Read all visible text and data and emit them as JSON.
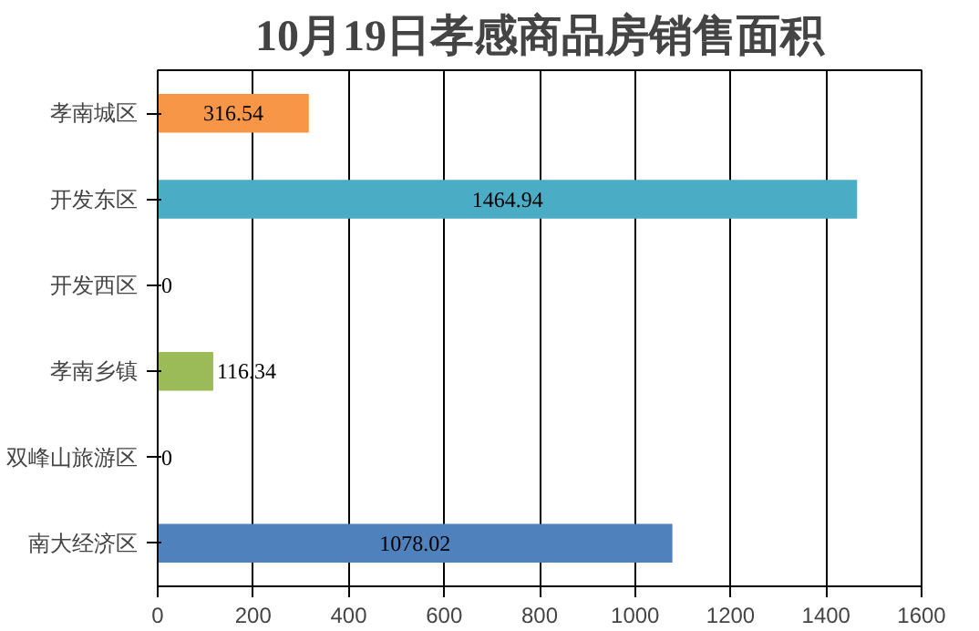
{
  "chart_data": {
    "type": "bar",
    "orientation": "horizontal",
    "title": "10月19日孝感商品房销售面积",
    "categories": [
      "孝南城区",
      "开发东区",
      "开发西区",
      "孝南乡镇",
      "双峰山旅游区",
      "南大经济区"
    ],
    "values": [
      316.54,
      1464.94,
      0,
      116.34,
      0,
      1078.02
    ],
    "colors": [
      "#f79646",
      "#4bacc6",
      "#c0504d",
      "#9bbb59",
      "#8064a2",
      "#4f81bd"
    ],
    "xlim": [
      0,
      1600
    ],
    "xticks": [
      0,
      200,
      400,
      600,
      800,
      1000,
      1200,
      1400,
      1600
    ],
    "grid": "x",
    "data_labels": true
  }
}
